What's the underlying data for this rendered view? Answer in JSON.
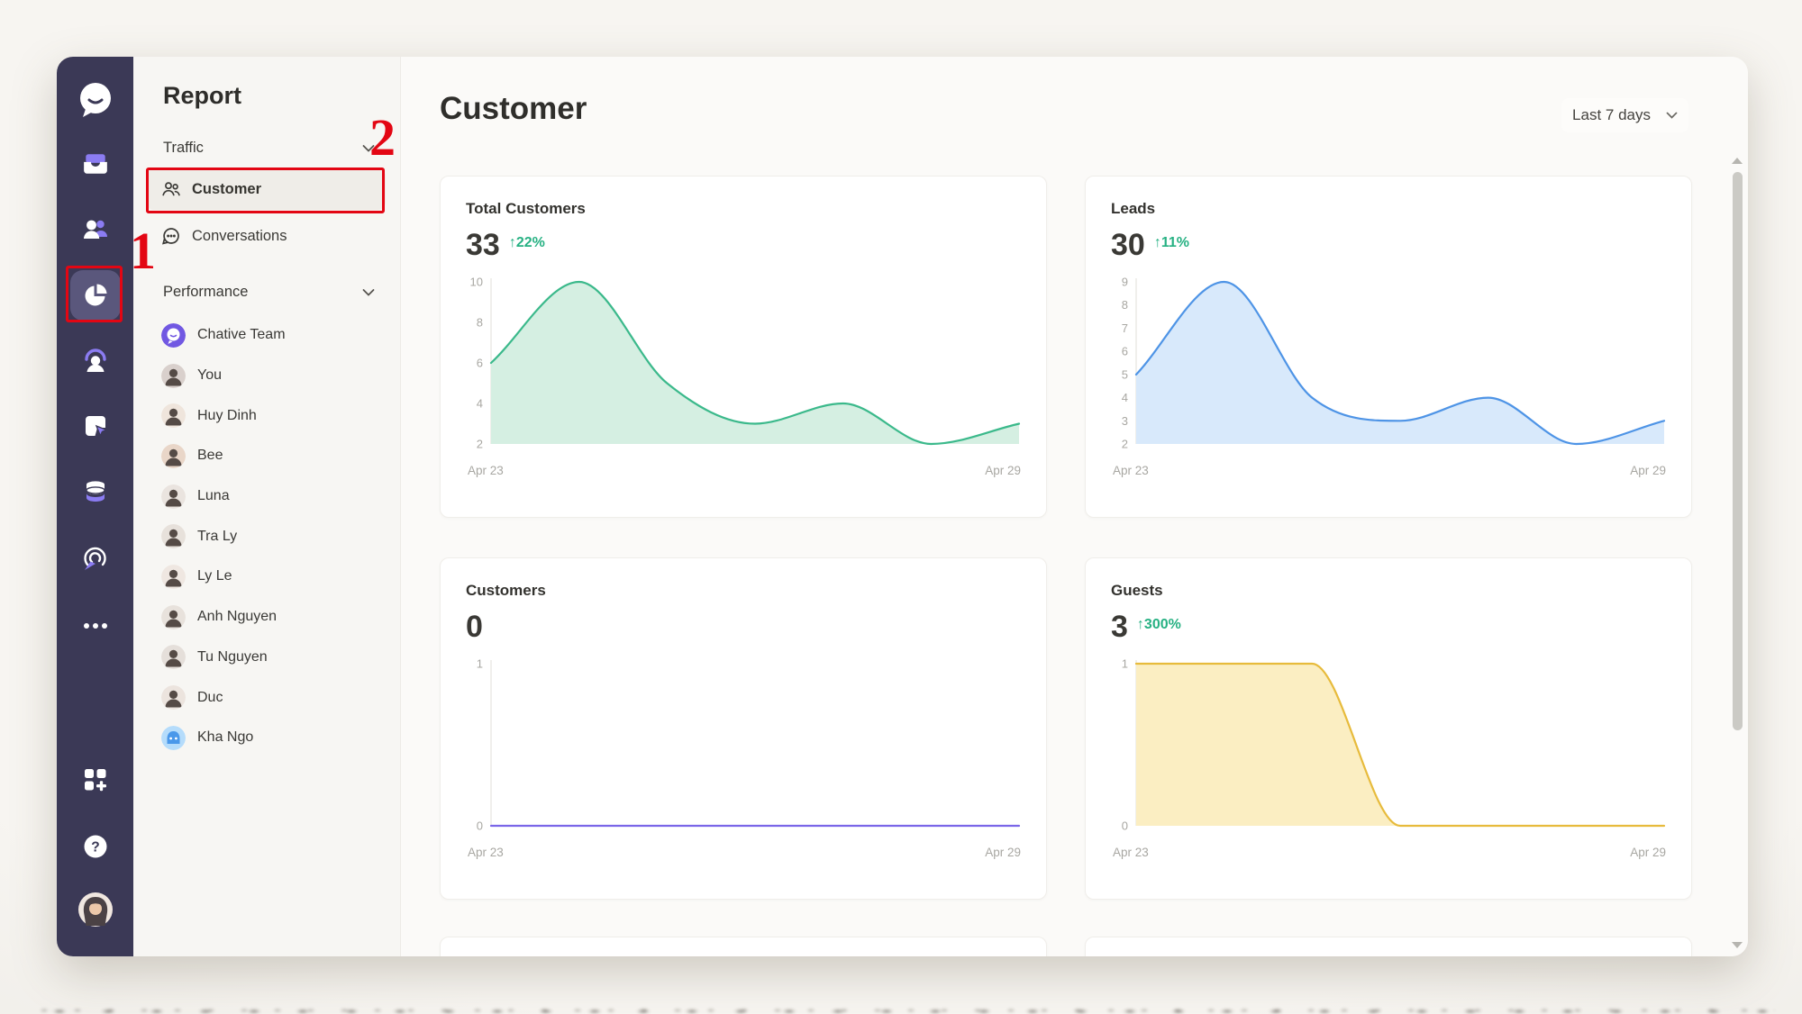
{
  "annotations": {
    "step_1": "1",
    "step_2": "2"
  },
  "colors": {
    "rail_bg": "#3b3956",
    "accent_purple": "#8b7cf2",
    "positive_green": "#27b183",
    "annotation_red": "#e30613"
  },
  "rail": {
    "icons": [
      "chat-logo",
      "inbox",
      "contacts",
      "reports-pie",
      "support-headset",
      "widgets-window",
      "data-cylinder",
      "automation-disc",
      "more-dots",
      "apps-grid",
      "help-question",
      "profile-avatar"
    ]
  },
  "report_panel": {
    "title": "Report",
    "traffic": {
      "label": "Traffic",
      "items": [
        {
          "label": "Customer",
          "icon": "people-icon",
          "active": true
        },
        {
          "label": "Conversations",
          "icon": "chat-bubble-icon",
          "active": false
        }
      ]
    },
    "performance": {
      "label": "Performance",
      "members": [
        {
          "name": "Chative Team",
          "avatar": "chative",
          "bg": "#7158e2"
        },
        {
          "name": "You",
          "avatar": "person",
          "bg": "#d9d0cc"
        },
        {
          "name": "Huy Dinh",
          "avatar": "person",
          "bg": "#efe5dc"
        },
        {
          "name": "Bee",
          "avatar": "person",
          "bg": "#e9d6c8"
        },
        {
          "name": "Luna",
          "avatar": "person",
          "bg": "#eae4df"
        },
        {
          "name": "Tra Ly",
          "avatar": "person",
          "bg": "#e7e1db"
        },
        {
          "name": "Ly Le",
          "avatar": "person",
          "bg": "#efe7e1"
        },
        {
          "name": "Anh Nguyen",
          "avatar": "person",
          "bg": "#e8e2dc"
        },
        {
          "name": "Tu Nguyen",
          "avatar": "person",
          "bg": "#e5dfda"
        },
        {
          "name": "Duc",
          "avatar": "person",
          "bg": "#ece4de"
        },
        {
          "name": "Kha Ngo",
          "avatar": "bot",
          "bg": "#b5dcfb"
        }
      ]
    }
  },
  "main": {
    "title": "Customer",
    "date_range": {
      "label": "Last 7 days"
    },
    "cards": [
      {
        "title": "Total Customers",
        "value": "33",
        "delta": "↑22%"
      },
      {
        "title": "Leads",
        "value": "30",
        "delta": "↑11%"
      },
      {
        "title": "Customers",
        "value": "0",
        "delta": ""
      },
      {
        "title": "Guests",
        "value": "3",
        "delta": "↑300%"
      }
    ]
  },
  "chart_data": [
    {
      "id": "total-customers",
      "type": "area",
      "title": "Total Customers",
      "x": [
        "Apr 23",
        "Apr 24",
        "Apr 25",
        "Apr 26",
        "Apr 27",
        "Apr 28",
        "Apr 29"
      ],
      "values": [
        6,
        10,
        5,
        3,
        4,
        2,
        3
      ],
      "ylim": [
        2,
        10
      ],
      "yticks": [
        2,
        4,
        6,
        8,
        10
      ],
      "x_tick_labels": [
        "Apr 23",
        "Apr 29"
      ],
      "grid": false,
      "legend": "none",
      "line_color": "#3bb98b",
      "fill_color": "#d5efe2"
    },
    {
      "id": "leads",
      "type": "area",
      "title": "Leads",
      "x": [
        "Apr 23",
        "Apr 24",
        "Apr 25",
        "Apr 26",
        "Apr 27",
        "Apr 28",
        "Apr 29"
      ],
      "values": [
        5,
        9,
        4,
        3,
        4,
        2,
        3
      ],
      "ylim": [
        2,
        9
      ],
      "yticks": [
        2,
        3,
        4,
        5,
        6,
        7,
        8,
        9
      ],
      "x_tick_labels": [
        "Apr 23",
        "Apr 29"
      ],
      "grid": false,
      "legend": "none",
      "line_color": "#4e94e6",
      "fill_color": "#d8e9fb"
    },
    {
      "id": "customers",
      "type": "line",
      "title": "Customers",
      "x": [
        "Apr 23",
        "Apr 24",
        "Apr 25",
        "Apr 26",
        "Apr 27",
        "Apr 28",
        "Apr 29"
      ],
      "values": [
        0,
        0,
        0,
        0,
        0,
        0,
        0
      ],
      "ylim": [
        0,
        1
      ],
      "yticks": [
        0,
        1
      ],
      "x_tick_labels": [
        "Apr 23",
        "Apr 29"
      ],
      "grid": false,
      "legend": "none",
      "line_color": "#7a66e8",
      "fill_color": "none"
    },
    {
      "id": "guests",
      "type": "area",
      "title": "Guests",
      "x": [
        "Apr 23",
        "Apr 24",
        "Apr 25",
        "Apr 26",
        "Apr 27",
        "Apr 28",
        "Apr 29"
      ],
      "values": [
        1,
        1,
        1,
        0,
        0,
        0,
        0
      ],
      "ylim": [
        0,
        1
      ],
      "yticks": [
        0,
        1
      ],
      "x_tick_labels": [
        "Apr 23",
        "Apr 29"
      ],
      "grid": false,
      "legend": "none",
      "line_color": "#e7bb3c",
      "fill_color": "#fbeec2"
    }
  ]
}
